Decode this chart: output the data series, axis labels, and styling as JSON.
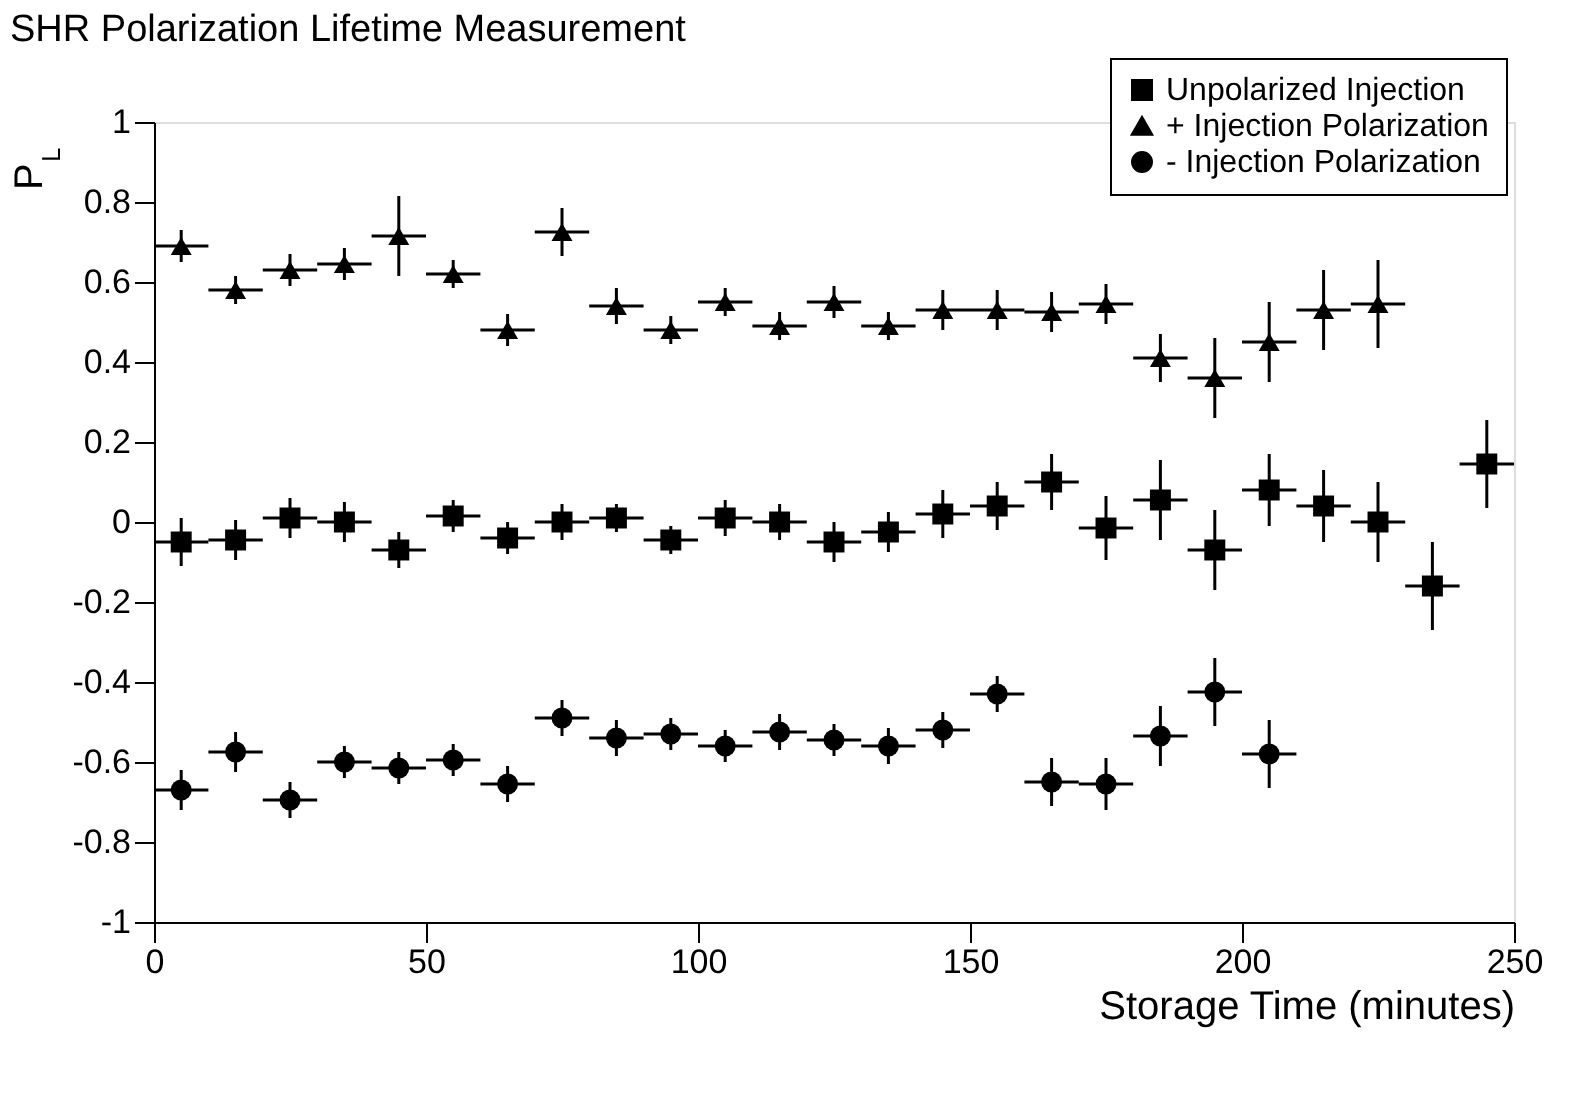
{
  "chart_data": {
    "type": "scatter",
    "title": "SHR Polarization Lifetime Measurement",
    "xlabel": "Storage Time (minutes)",
    "ylabel": "P$_{L}$",
    "xlim": [
      0,
      250
    ],
    "xticks": [
      0,
      50,
      100,
      150,
      200,
      250
    ],
    "ylim": [
      -1,
      1
    ],
    "yticks": [
      -1,
      -0.8,
      -0.6,
      -0.4,
      -0.2,
      0,
      0.2,
      0.4,
      0.6,
      0.8,
      1
    ],
    "grid": false,
    "legend": "top right",
    "series": [
      {
        "name": "Unpolarized Injection",
        "color": "#000000",
        "marker": "square",
        "x": [
          5,
          15,
          25,
          35,
          45,
          55,
          65,
          75,
          85,
          95,
          105,
          115,
          125,
          135,
          145,
          155,
          165,
          175,
          185,
          195,
          205,
          215,
          225,
          235,
          245
        ],
        "values": [
          -0.05,
          -0.045,
          0.01,
          0.0,
          -0.07,
          0.015,
          -0.04,
          0.0,
          0.01,
          -0.045,
          0.01,
          0.0,
          -0.05,
          -0.025,
          0.02,
          0.04,
          0.1,
          -0.015,
          0.055,
          -0.07,
          0.08,
          0.04,
          0.0,
          -0.16,
          0.145
        ],
        "errors": [
          0.06,
          0.05,
          0.05,
          0.05,
          0.045,
          0.04,
          0.04,
          0.045,
          0.035,
          0.035,
          0.045,
          0.045,
          0.05,
          0.05,
          0.06,
          0.06,
          0.07,
          0.08,
          0.1,
          0.1,
          0.09,
          0.09,
          0.1,
          0.11,
          0.11
        ],
        "xerrors": [
          5,
          5,
          5,
          5,
          5,
          5,
          5,
          5,
          5,
          5,
          5,
          5,
          5,
          5,
          5,
          5,
          5,
          5,
          5,
          5,
          5,
          5,
          5,
          5,
          5
        ]
      },
      {
        "name": "+ Injection Polarization",
        "color": "#000000",
        "marker": "triangle",
        "x": [
          5,
          15,
          25,
          35,
          45,
          55,
          65,
          75,
          85,
          95,
          105,
          115,
          125,
          135,
          145,
          155,
          165,
          175,
          185,
          195,
          205,
          215,
          225
        ],
        "values": [
          0.69,
          0.58,
          0.63,
          0.645,
          0.715,
          0.62,
          0.48,
          0.725,
          0.54,
          0.48,
          0.55,
          0.49,
          0.55,
          0.49,
          0.53,
          0.53,
          0.525,
          0.545,
          0.41,
          0.36,
          0.45,
          0.53,
          0.545
        ],
        "errors": [
          0.04,
          0.035,
          0.04,
          0.04,
          0.1,
          0.035,
          0.04,
          0.06,
          0.045,
          0.035,
          0.035,
          0.035,
          0.04,
          0.035,
          0.05,
          0.05,
          0.05,
          0.05,
          0.06,
          0.1,
          0.1,
          0.1,
          0.11
        ],
        "xerrors": [
          5,
          5,
          5,
          5,
          5,
          5,
          5,
          5,
          5,
          5,
          5,
          5,
          5,
          5,
          5,
          5,
          5,
          5,
          5,
          5,
          5,
          5,
          5
        ]
      },
      {
        "name": "- Injection Polarization",
        "color": "#000000",
        "marker": "circle",
        "x": [
          5,
          15,
          25,
          35,
          45,
          55,
          65,
          75,
          85,
          95,
          105,
          115,
          125,
          135,
          145,
          155,
          165,
          175,
          185,
          195,
          205
        ],
        "values": [
          -0.67,
          -0.575,
          -0.695,
          -0.6,
          -0.615,
          -0.595,
          -0.655,
          -0.49,
          -0.54,
          -0.53,
          -0.56,
          -0.525,
          -0.545,
          -0.56,
          -0.52,
          -0.43,
          -0.65,
          -0.655,
          -0.535,
          -0.425,
          -0.58
        ],
        "errors": [
          0.05,
          0.05,
          0.045,
          0.04,
          0.04,
          0.04,
          0.045,
          0.045,
          0.045,
          0.04,
          0.04,
          0.045,
          0.04,
          0.045,
          0.045,
          0.045,
          0.06,
          0.065,
          0.075,
          0.085,
          0.085
        ],
        "xerrors": [
          5,
          5,
          5,
          5,
          5,
          5,
          5,
          5,
          5,
          5,
          5,
          5,
          5,
          5,
          5,
          5,
          5,
          5,
          5,
          5,
          5
        ]
      }
    ]
  }
}
